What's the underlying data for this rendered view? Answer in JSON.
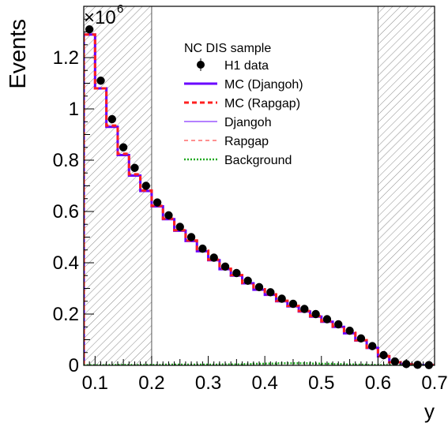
{
  "chart_data": {
    "type": "line",
    "xlabel": "y",
    "ylabel": "Events",
    "y_multiplier": "×10",
    "y_multiplier_exp": "6",
    "xlim": [
      0.08,
      0.7
    ],
    "ylim": [
      0,
      1.4
    ],
    "x_ticks": [
      "0.1",
      "0.2",
      "0.3",
      "0.4",
      "0.5",
      "0.6",
      "0.7"
    ],
    "y_ticks": [
      "0",
      "0.2",
      "0.4",
      "0.6",
      "0.8",
      "1",
      "1.2"
    ],
    "excluded_regions": [
      [
        0.08,
        0.2
      ],
      [
        0.6,
        0.7
      ]
    ],
    "legend": {
      "title": "NC DIS sample",
      "entries": [
        {
          "label": "H1 data",
          "style": "marker"
        },
        {
          "label": "MC (Djangoh)",
          "style": "thick-solid",
          "color": "#6a00ff"
        },
        {
          "label": "MC (Rapgap)",
          "style": "thick-dashed",
          "color": "#ff2020"
        },
        {
          "label": "Djangoh",
          "style": "thin-solid",
          "color": "#6a00ff"
        },
        {
          "label": "Rapgap",
          "style": "thin-dashed",
          "color": "#ff2020"
        },
        {
          "label": "Background",
          "style": "dotted",
          "color": "#22aa22"
        }
      ]
    },
    "bin_edges": [
      0.08,
      0.1,
      0.12,
      0.14,
      0.16,
      0.18,
      0.2,
      0.22,
      0.24,
      0.26,
      0.28,
      0.3,
      0.32,
      0.34,
      0.36,
      0.38,
      0.4,
      0.42,
      0.44,
      0.46,
      0.48,
      0.5,
      0.52,
      0.54,
      0.56,
      0.58,
      0.6,
      0.62,
      0.64,
      0.66,
      0.68,
      0.7
    ],
    "series": [
      {
        "name": "H1 data",
        "values": [
          1.31,
          1.11,
          0.96,
          0.85,
          0.77,
          0.7,
          0.635,
          0.585,
          0.54,
          0.5,
          0.455,
          0.42,
          0.385,
          0.36,
          0.33,
          0.305,
          0.285,
          0.26,
          0.24,
          0.22,
          0.2,
          0.18,
          0.16,
          0.135,
          0.105,
          0.075,
          0.04,
          0.015,
          0.005,
          0.002,
          0.001
        ]
      },
      {
        "name": "MC (Djangoh)",
        "values": [
          1.29,
          1.08,
          0.93,
          0.82,
          0.74,
          0.68,
          0.62,
          0.57,
          0.525,
          0.485,
          0.445,
          0.41,
          0.375,
          0.35,
          0.32,
          0.295,
          0.275,
          0.25,
          0.23,
          0.21,
          0.19,
          0.17,
          0.15,
          0.125,
          0.097,
          0.068,
          0.035,
          0.012,
          0.004,
          0.0015,
          0.0008
        ]
      },
      {
        "name": "MC (Rapgap)",
        "values": [
          1.29,
          1.08,
          0.935,
          0.825,
          0.745,
          0.682,
          0.622,
          0.572,
          0.527,
          0.487,
          0.447,
          0.412,
          0.377,
          0.352,
          0.322,
          0.297,
          0.277,
          0.252,
          0.232,
          0.212,
          0.192,
          0.172,
          0.152,
          0.127,
          0.098,
          0.069,
          0.036,
          0.012,
          0.004,
          0.0015,
          0.0008
        ]
      },
      {
        "name": "Background",
        "values": [
          0.001,
          0.001,
          0.002,
          0.002,
          0.002,
          0.002,
          0.002,
          0.003,
          0.003,
          0.003,
          0.003,
          0.003,
          0.004,
          0.004,
          0.005,
          0.006,
          0.007,
          0.008,
          0.008,
          0.008,
          0.007,
          0.006,
          0.005,
          0.004,
          0.003,
          0.002,
          0.001,
          0.001,
          0.0005,
          0.0005,
          0.0005
        ]
      }
    ]
  }
}
